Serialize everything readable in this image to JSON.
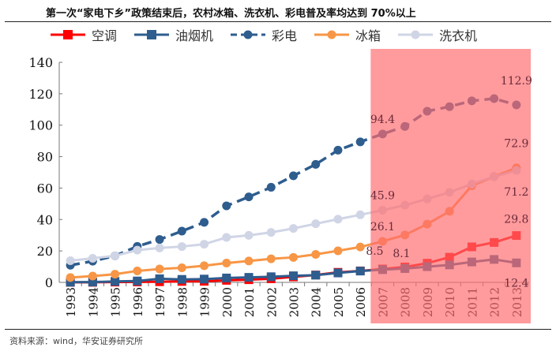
{
  "title": "第一次“家电下乡”政策结束后，农村冰箱、洗衣机、彩电普及率均达到 70%以上",
  "source": "资料来源：wind，华安证券研究所",
  "chart_data": {
    "type": "line",
    "title": "",
    "xlabel": "",
    "ylabel": "",
    "ylim": [
      0,
      140
    ],
    "yticks": [
      0,
      20,
      40,
      60,
      80,
      100,
      120,
      140
    ],
    "grid": false,
    "legend": "top",
    "categories": [
      "1993",
      "1994",
      "1995",
      "1996",
      "1997",
      "1998",
      "1999",
      "2000",
      "2001",
      "2002",
      "2003",
      "2004",
      "2005",
      "2006",
      "2007",
      "2008",
      "2009",
      "2010",
      "2011",
      "2012",
      "2013"
    ],
    "highlight_range": [
      "2007",
      "2013"
    ],
    "highlight_color": "#ff6b6e",
    "series": [
      {
        "name": "空调",
        "color": "#ff0000",
        "marker": "square",
        "dash": false,
        "values": [
          0.05,
          0.05,
          0.2,
          0.3,
          0.4,
          0.6,
          0.7,
          1.3,
          1.7,
          2.3,
          3.5,
          4.7,
          6.4,
          7.3,
          8.5,
          9.8,
          12.2,
          16.0,
          22.6,
          25.4,
          29.8
        ],
        "labels": {
          "2007": "8.5",
          "2013": "29.8"
        }
      },
      {
        "name": "油烟机",
        "color": "#2e5d8e",
        "marker": "square",
        "dash": false,
        "values": [
          0.1,
          0.2,
          0.6,
          0.9,
          2.3,
          1.9,
          2.1,
          2.8,
          3.2,
          3.6,
          4.2,
          4.6,
          6.0,
          7.2,
          8.1,
          8.8,
          10.0,
          11.1,
          13.0,
          14.6,
          12.4
        ],
        "labels": {
          "2007": "8.1",
          "2013": "12.4"
        }
      },
      {
        "name": "彩电",
        "color": "#2e5d8e",
        "marker": "circle",
        "dash": true,
        "values": [
          10.9,
          13.5,
          16.9,
          22.9,
          27.3,
          32.6,
          38.2,
          48.7,
          54.4,
          60.5,
          67.8,
          75.1,
          84.1,
          89.4,
          94.4,
          99.2,
          108.9,
          111.8,
          115.5,
          116.9,
          112.9
        ],
        "labels": {
          "2007": "94.4",
          "2013": "112.9"
        }
      },
      {
        "name": "冰箱",
        "color": "#f79646",
        "marker": "circle",
        "dash": false,
        "values": [
          3.1,
          4.0,
          5.2,
          7.3,
          8.5,
          9.3,
          10.6,
          12.3,
          13.6,
          15.0,
          15.9,
          17.8,
          20.1,
          22.5,
          26.1,
          30.2,
          37.1,
          45.2,
          61.5,
          67.3,
          72.9
        ],
        "labels": {
          "2007": "26.1",
          "2013": "72.9"
        }
      },
      {
        "name": "洗衣机",
        "color": "#d0d5e6",
        "marker": "circle",
        "dash": false,
        "values": [
          13.8,
          15.3,
          16.9,
          20.5,
          21.9,
          22.8,
          24.3,
          28.6,
          29.9,
          31.8,
          34.3,
          37.3,
          40.2,
          43.0,
          45.9,
          49.1,
          53.1,
          57.3,
          62.6,
          67.2,
          71.2
        ],
        "labels": {
          "2007": "45.9",
          "2013": "71.2"
        }
      }
    ]
  }
}
